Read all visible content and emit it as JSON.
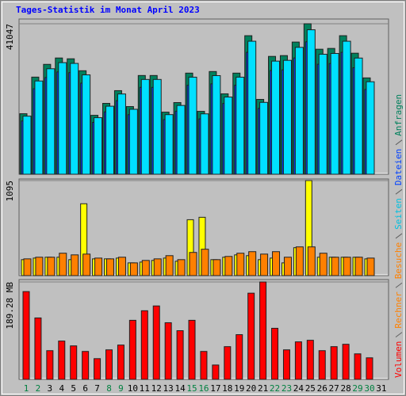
{
  "title": "Tages-Statistik im Monat April 2023",
  "categories": [
    "1",
    "2",
    "3",
    "4",
    "5",
    "6",
    "7",
    "8",
    "9",
    "10",
    "11",
    "12",
    "13",
    "14",
    "15",
    "16",
    "17",
    "18",
    "19",
    "20",
    "21",
    "22",
    "23",
    "24",
    "25",
    "26",
    "27",
    "28",
    "29",
    "30",
    "31"
  ],
  "category_colors": [
    "#008040",
    "#008040",
    "#000000",
    "#000000",
    "#000000",
    "#000000",
    "#000000",
    "#008040",
    "#008040",
    "#000000",
    "#000000",
    "#000000",
    "#000000",
    "#000000",
    "#008040",
    "#008040",
    "#000000",
    "#000000",
    "#000000",
    "#000000",
    "#000000",
    "#008040",
    "#008040",
    "#000000",
    "#000000",
    "#000000",
    "#000000",
    "#000000",
    "#008040",
    "#008040",
    "#000000"
  ],
  "chart_data": [
    {
      "type": "bar",
      "ylim": [
        0,
        42343
      ],
      "yticks": [
        41047
      ],
      "series": [
        {
          "name": "Anfragen",
          "color": "#00805c",
          "text_color": "#00805c",
          "values": [
            16507,
            26498,
            29974,
            31711,
            31494,
            28236,
            16073,
            19331,
            22806,
            18462,
            26933,
            26933,
            16942,
            19548,
            27584,
            17159,
            28019,
            21937,
            27584,
            37793,
            20417,
            32146,
            32363,
            36055,
            41047,
            34100,
            34318,
            37793,
            33014,
            26281,
            null
          ]
        },
        {
          "name": "Dateien",
          "color": "#0040ff",
          "text_color": "#0040ff",
          "values": [
            14526,
            23318,
            26377,
            27906,
            27715,
            24848,
            14144,
            17011,
            20069,
            16247,
            23701,
            23701,
            14909,
            17202,
            24274,
            15100,
            24657,
            19305,
            24274,
            33258,
            17967,
            28288,
            28479,
            31728,
            36121,
            30008,
            30200,
            33258,
            29052,
            23127,
            null
          ]
        },
        {
          "name": "Seiten",
          "color": "#00e0ff",
          "text_color": "#00c0e0",
          "values": [
            15847,
            25438,
            28775,
            30443,
            30234,
            27107,
            15430,
            18558,
            21894,
            17724,
            25856,
            25856,
            16264,
            18766,
            26481,
            16473,
            26898,
            21060,
            26481,
            36281,
            19600,
            30860,
            31068,
            34613,
            39405,
            32736,
            32945,
            36281,
            31693,
            25230,
            null
          ]
        }
      ]
    },
    {
      "type": "bar",
      "ylim": [
        0,
        1113
      ],
      "yticks": [
        1095
      ],
      "series": [
        {
          "name": "Besuche",
          "color": "#ffff00",
          "text_color": "#ff8000",
          "values": [
            184,
            202,
            212,
            212,
            184,
            828,
            193,
            193,
            202,
            147,
            156,
            175,
            202,
            166,
            644,
            672,
            184,
            212,
            239,
            230,
            184,
            202,
            147,
            322,
            1095,
            212,
            212,
            212,
            212,
            193,
            null
          ]
        },
        {
          "name": "Rechner",
          "color": "#ff8000",
          "text_color": "#ff8000",
          "values": [
            193,
            212,
            212,
            258,
            239,
            248,
            202,
            193,
            212,
            147,
            175,
            193,
            230,
            184,
            267,
            304,
            184,
            221,
            258,
            276,
            248,
            276,
            212,
            331,
            331,
            258,
            212,
            212,
            212,
            202,
            null
          ]
        }
      ]
    },
    {
      "type": "bar",
      "ylim": [
        0,
        193.9
      ],
      "yticks": [
        {
          "value": 189.28,
          "label": "189.28 MB"
        }
      ],
      "series": [
        {
          "name": "Volumen",
          "color": "#ff0000",
          "text_color": "#ff0000",
          "values": [
            170.6,
            119.4,
            55.8,
            74.5,
            65.1,
            54.3,
            40.3,
            57.4,
            66.7,
            114.8,
            133.4,
            142.7,
            110.1,
            94.6,
            114.8,
            54.3,
            27.9,
            63.6,
            86.9,
            167.5,
            189.28,
            99.3,
            57.4,
            72.9,
            76,
            55.8,
            63.6,
            68.2,
            49.6,
            41.9,
            null
          ]
        }
      ]
    }
  ]
}
